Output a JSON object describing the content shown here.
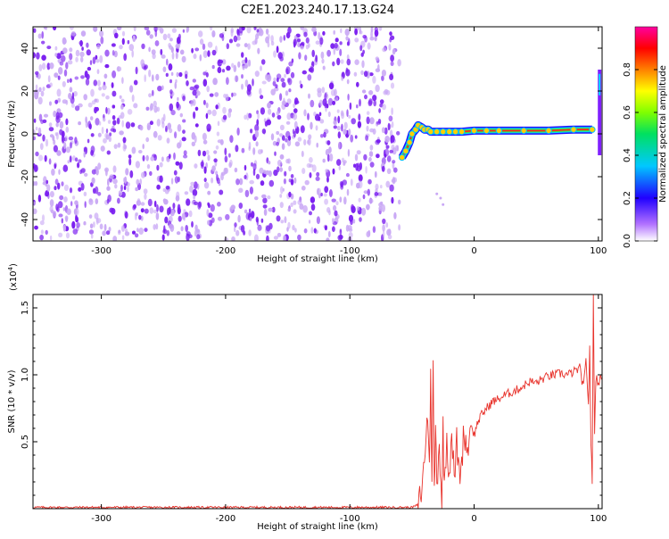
{
  "title": "C2E1.2023.240.17.13.G24",
  "colors": {
    "noise": "#7a1ef0",
    "noise_light": "#c9a8f5",
    "snr_line": "#e8332c",
    "axis": "#000000"
  },
  "chart_data": [
    {
      "type": "heatmap",
      "xlabel": "Height of straight line (km)",
      "ylabel": "Frequency (Hz)",
      "xlim": [
        -355,
        103
      ],
      "ylim": [
        -50,
        50
      ],
      "xticks": [
        -300,
        -200,
        -100,
        0,
        100
      ],
      "yticks": [
        -40,
        -20,
        0,
        20,
        40
      ],
      "noise_region_x": [
        -355,
        -60
      ],
      "signal_track": {
        "x": [
          -58,
          -55,
          -52,
          -50,
          -47,
          -45,
          -42,
          -40,
          -37,
          -35,
          -30,
          -25,
          -20,
          -15,
          -10,
          0,
          10,
          20,
          40,
          60,
          80,
          95
        ],
        "y": [
          -11,
          -8,
          -4,
          0,
          2,
          4,
          3,
          2,
          2,
          1,
          1,
          1,
          1,
          1,
          1,
          1.5,
          1.5,
          1.5,
          1.5,
          1.5,
          2,
          2
        ]
      },
      "colorbar": {
        "label": "Normalized spectral amplitude",
        "ticks": [
          "0.0",
          "0.2",
          "0.4",
          "0.6",
          "0.8"
        ],
        "range": [
          0,
          1
        ]
      }
    },
    {
      "type": "line",
      "xlabel": "Height of straight line (km)",
      "ylabel": "SNR (10 * v/v)",
      "scale_label": "(x10",
      "scale_exp": "4",
      "scale_close": ")",
      "xlim": [
        -355,
        103
      ],
      "ylim": [
        0,
        1.6
      ],
      "xticks": [
        -300,
        -200,
        -100,
        0,
        100
      ],
      "yticks": [
        "0.5",
        "1.0",
        "1.5"
      ],
      "yticks_values": [
        0.5,
        1.0,
        1.5
      ],
      "series": [
        {
          "x": [
            -355,
            -300,
            -200,
            -100,
            -50,
            -45,
            -42,
            -40,
            -38,
            -36,
            -35,
            -34,
            -33,
            -32,
            -31,
            -30,
            -28,
            -26,
            -25,
            -24,
            -22,
            -20,
            -18,
            -16,
            -14,
            -12,
            -10,
            -8,
            -6,
            -4,
            -2,
            0,
            3,
            6,
            10,
            15,
            20,
            25,
            30,
            35,
            40,
            45,
            50,
            55,
            60,
            65,
            70,
            75,
            80,
            85,
            88,
            90,
            92,
            93,
            94,
            95,
            96,
            97,
            98,
            100,
            103
          ],
          "y": [
            0.01,
            0.01,
            0.01,
            0.01,
            0.01,
            0.03,
            0.15,
            0.35,
            0.7,
            0.4,
            0.95,
            0.3,
            1.05,
            0.1,
            0.6,
            0.2,
            0.5,
            0.05,
            0.6,
            0.15,
            0.55,
            0.25,
            0.6,
            0.2,
            0.5,
            0.25,
            0.35,
            0.6,
            0.45,
            0.5,
            0.7,
            0.55,
            0.65,
            0.7,
            0.75,
            0.8,
            0.82,
            0.85,
            0.87,
            0.89,
            0.92,
            0.95,
            0.94,
            0.97,
            0.99,
            1.0,
            1.01,
            1.0,
            1.02,
            1.05,
            0.9,
            1.1,
            0.8,
            1.2,
            0.5,
            0.2,
            1.6,
            0.55,
            0.98,
            0.95,
            0.97
          ]
        }
      ]
    }
  ]
}
